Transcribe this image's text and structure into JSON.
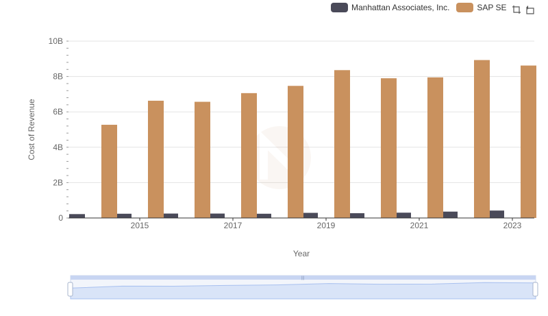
{
  "legend": {
    "items": [
      {
        "label": "Manhattan Associates, Inc.",
        "color": "#4a4a59"
      },
      {
        "label": "SAP SE",
        "color": "#c9915e"
      }
    ]
  },
  "toolbox": {
    "icons": [
      "zoom-icon",
      "restore-icon"
    ]
  },
  "chart_data": {
    "type": "bar",
    "title": "",
    "xlabel": "Year",
    "ylabel": "Cost of Revenue",
    "categories": [
      "2014",
      "2015",
      "2016",
      "2017",
      "2018",
      "2019",
      "2020",
      "2021",
      "2022",
      "2023"
    ],
    "x_tick_labels": [
      "2015",
      "2017",
      "2019",
      "2021",
      "2023"
    ],
    "y_tick_labels": [
      "0",
      "2B",
      "4B",
      "6B",
      "8B",
      "10B"
    ],
    "ylim": [
      0,
      10000000000
    ],
    "grid": true,
    "legend_position": "top-right",
    "series": [
      {
        "name": "Manhattan Associates, Inc.",
        "color": "#4a4a59",
        "values": [
          220000000,
          240000000,
          250000000,
          250000000,
          240000000,
          290000000,
          270000000,
          300000000,
          360000000,
          420000000
        ]
      },
      {
        "name": "SAP SE",
        "color": "#c9915e",
        "values": [
          5270000000,
          6630000000,
          6570000000,
          7060000000,
          7470000000,
          8360000000,
          7900000000,
          7950000000,
          8930000000,
          8620000000
        ]
      }
    ]
  }
}
